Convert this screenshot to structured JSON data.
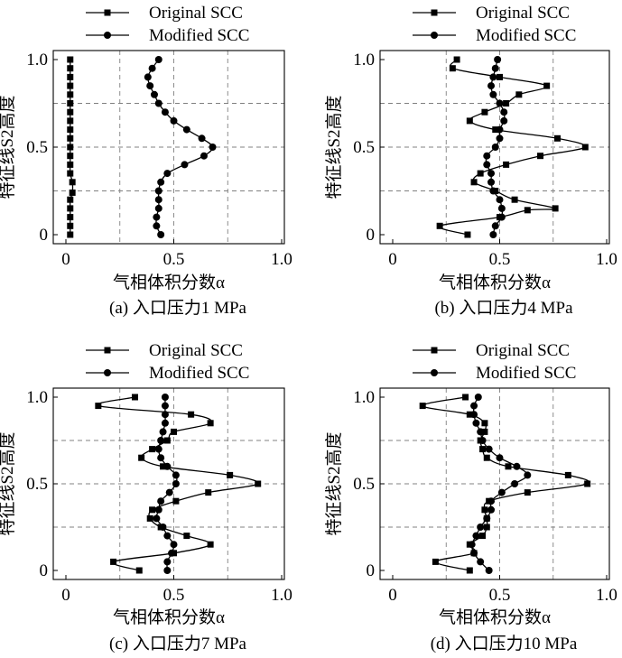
{
  "figure": {
    "subplot_captions": [
      "(a) 入口压力1 MPa",
      "(b) 入口压力4 MPa",
      "(c) 入口压力7 MPa",
      "(d) 入口压力10 MPa"
    ]
  },
  "colors": {
    "line": "#000000",
    "grid": "#808080",
    "background": "#ffffff"
  },
  "chart_data": [
    {
      "type": "line",
      "caption": "(a) 入口压力1 MPa",
      "xlabel": "气相体积分数α",
      "ylabel": "特征线S2高度",
      "xlim": [
        0,
        1.0
      ],
      "ylim": [
        0,
        1.0
      ],
      "xticks": [
        0,
        0.5,
        1.0
      ],
      "xtick_labels": [
        "0",
        "0.5",
        "1.0"
      ],
      "yticks": [
        0,
        0.5,
        1.0
      ],
      "ytick_labels": [
        "0",
        "0.5",
        "1.0"
      ],
      "grid": true,
      "legend": [
        "Original SCC",
        "Modified SCC"
      ],
      "series": [
        {
          "name": "Original SCC",
          "marker": "square",
          "points": [
            [
              0.02,
              0.0
            ],
            [
              0.02,
              0.05
            ],
            [
              0.02,
              0.1
            ],
            [
              0.02,
              0.15
            ],
            [
              0.02,
              0.2
            ],
            [
              0.03,
              0.24
            ],
            [
              0.03,
              0.3
            ],
            [
              0.02,
              0.35
            ],
            [
              0.02,
              0.4
            ],
            [
              0.02,
              0.45
            ],
            [
              0.02,
              0.5
            ],
            [
              0.02,
              0.55
            ],
            [
              0.02,
              0.6
            ],
            [
              0.02,
              0.65
            ],
            [
              0.02,
              0.7
            ],
            [
              0.02,
              0.75
            ],
            [
              0.02,
              0.8
            ],
            [
              0.02,
              0.85
            ],
            [
              0.02,
              0.9
            ],
            [
              0.02,
              0.95
            ],
            [
              0.02,
              1.0
            ]
          ]
        },
        {
          "name": "Modified SCC",
          "marker": "circle",
          "points": [
            [
              0.44,
              0.0
            ],
            [
              0.42,
              0.05
            ],
            [
              0.42,
              0.1
            ],
            [
              0.43,
              0.15
            ],
            [
              0.43,
              0.2
            ],
            [
              0.43,
              0.25
            ],
            [
              0.44,
              0.3
            ],
            [
              0.47,
              0.35
            ],
            [
              0.55,
              0.4
            ],
            [
              0.64,
              0.45
            ],
            [
              0.68,
              0.5
            ],
            [
              0.63,
              0.55
            ],
            [
              0.56,
              0.6
            ],
            [
              0.5,
              0.65
            ],
            [
              0.46,
              0.7
            ],
            [
              0.43,
              0.75
            ],
            [
              0.41,
              0.8
            ],
            [
              0.39,
              0.85
            ],
            [
              0.38,
              0.9
            ],
            [
              0.4,
              0.95
            ],
            [
              0.43,
              1.0
            ]
          ]
        }
      ]
    },
    {
      "type": "line",
      "caption": "(b) 入口压力4 MPa",
      "xlabel": "气相体积分数α",
      "ylabel": "特征线S2高度",
      "xlim": [
        0,
        1.0
      ],
      "ylim": [
        0,
        1.0
      ],
      "xticks": [
        0,
        0.5,
        1.0
      ],
      "xtick_labels": [
        "0",
        "0.5",
        "1.0"
      ],
      "yticks": [
        0,
        0.5,
        1.0
      ],
      "ytick_labels": [
        "0",
        "0.5",
        "1.0"
      ],
      "grid": true,
      "legend": [
        "Original SCC",
        "Modified SCC"
      ],
      "series": [
        {
          "name": "Original SCC",
          "marker": "square",
          "points": [
            [
              0.35,
              0.0
            ],
            [
              0.22,
              0.05
            ],
            [
              0.5,
              0.1
            ],
            [
              0.63,
              0.14
            ],
            [
              0.76,
              0.15
            ],
            [
              0.57,
              0.2
            ],
            [
              0.48,
              0.25
            ],
            [
              0.38,
              0.3
            ],
            [
              0.41,
              0.35
            ],
            [
              0.53,
              0.4
            ],
            [
              0.69,
              0.45
            ],
            [
              0.9,
              0.5
            ],
            [
              0.77,
              0.55
            ],
            [
              0.48,
              0.6
            ],
            [
              0.36,
              0.65
            ],
            [
              0.43,
              0.7
            ],
            [
              0.53,
              0.75
            ],
            [
              0.59,
              0.8
            ],
            [
              0.72,
              0.85
            ],
            [
              0.5,
              0.9
            ],
            [
              0.28,
              0.95
            ],
            [
              0.3,
              1.0
            ]
          ]
        },
        {
          "name": "Modified SCC",
          "marker": "circle",
          "points": [
            [
              0.47,
              0.0
            ],
            [
              0.48,
              0.05
            ],
            [
              0.51,
              0.1
            ],
            [
              0.51,
              0.15
            ],
            [
              0.5,
              0.2
            ],
            [
              0.47,
              0.25
            ],
            [
              0.46,
              0.3
            ],
            [
              0.46,
              0.35
            ],
            [
              0.44,
              0.4
            ],
            [
              0.44,
              0.45
            ],
            [
              0.48,
              0.5
            ],
            [
              0.5,
              0.55
            ],
            [
              0.5,
              0.6
            ],
            [
              0.52,
              0.65
            ],
            [
              0.52,
              0.7
            ],
            [
              0.5,
              0.75
            ],
            [
              0.47,
              0.8
            ],
            [
              0.46,
              0.85
            ],
            [
              0.47,
              0.9
            ],
            [
              0.48,
              0.95
            ],
            [
              0.49,
              1.0
            ]
          ]
        }
      ]
    },
    {
      "type": "line",
      "caption": "(c) 入口压力7 MPa",
      "xlabel": "气相体积分数α",
      "ylabel": "特征线S2高度",
      "xlim": [
        0,
        1.0
      ],
      "ylim": [
        0,
        1.0
      ],
      "xticks": [
        0,
        0.5,
        1.0
      ],
      "xtick_labels": [
        "0",
        "0.5",
        "1.0"
      ],
      "yticks": [
        0,
        0.5,
        1.0
      ],
      "ytick_labels": [
        "0",
        "0.5",
        "1.0"
      ],
      "grid": true,
      "legend": [
        "Original SCC",
        "Modified SCC"
      ],
      "series": [
        {
          "name": "Original SCC",
          "marker": "square",
          "points": [
            [
              0.34,
              0.0
            ],
            [
              0.22,
              0.05
            ],
            [
              0.5,
              0.1
            ],
            [
              0.67,
              0.15
            ],
            [
              0.56,
              0.2
            ],
            [
              0.44,
              0.25
            ],
            [
              0.39,
              0.3
            ],
            [
              0.4,
              0.35
            ],
            [
              0.51,
              0.4
            ],
            [
              0.66,
              0.45
            ],
            [
              0.89,
              0.5
            ],
            [
              0.76,
              0.55
            ],
            [
              0.45,
              0.6
            ],
            [
              0.35,
              0.65
            ],
            [
              0.4,
              0.7
            ],
            [
              0.47,
              0.75
            ],
            [
              0.5,
              0.8
            ],
            [
              0.67,
              0.85
            ],
            [
              0.58,
              0.9
            ],
            [
              0.15,
              0.95
            ],
            [
              0.32,
              1.0
            ]
          ]
        },
        {
          "name": "Modified SCC",
          "marker": "circle",
          "points": [
            [
              0.47,
              0.0
            ],
            [
              0.47,
              0.05
            ],
            [
              0.49,
              0.1
            ],
            [
              0.5,
              0.15
            ],
            [
              0.47,
              0.2
            ],
            [
              0.45,
              0.25
            ],
            [
              0.42,
              0.3
            ],
            [
              0.43,
              0.35
            ],
            [
              0.44,
              0.4
            ],
            [
              0.48,
              0.45
            ],
            [
              0.51,
              0.5
            ],
            [
              0.51,
              0.55
            ],
            [
              0.47,
              0.6
            ],
            [
              0.44,
              0.65
            ],
            [
              0.43,
              0.7
            ],
            [
              0.44,
              0.75
            ],
            [
              0.45,
              0.8
            ],
            [
              0.46,
              0.85
            ],
            [
              0.46,
              0.9
            ],
            [
              0.46,
              0.95
            ],
            [
              0.46,
              1.0
            ]
          ]
        }
      ]
    },
    {
      "type": "line",
      "caption": "(d) 入口压力10 MPa",
      "xlabel": "气相体积分数α",
      "ylabel": "特征线S2高度",
      "xlim": [
        0,
        1.0
      ],
      "ylim": [
        0,
        1.0
      ],
      "xticks": [
        0,
        0.5,
        1.0
      ],
      "xtick_labels": [
        "0",
        "0.5",
        "1.0"
      ],
      "yticks": [
        0,
        0.5,
        1.0
      ],
      "ytick_labels": [
        "0",
        "0.5",
        "1.0"
      ],
      "grid": true,
      "legend": [
        "Original SCC",
        "Modified SCC"
      ],
      "series": [
        {
          "name": "Original SCC",
          "marker": "square",
          "points": [
            [
              0.36,
              0.0
            ],
            [
              0.2,
              0.05
            ],
            [
              0.38,
              0.1
            ],
            [
              0.36,
              0.15
            ],
            [
              0.42,
              0.2
            ],
            [
              0.44,
              0.25
            ],
            [
              0.44,
              0.3
            ],
            [
              0.43,
              0.35
            ],
            [
              0.45,
              0.4
            ],
            [
              0.63,
              0.45
            ],
            [
              0.91,
              0.5
            ],
            [
              0.82,
              0.55
            ],
            [
              0.54,
              0.6
            ],
            [
              0.44,
              0.65
            ],
            [
              0.42,
              0.7
            ],
            [
              0.41,
              0.75
            ],
            [
              0.43,
              0.8
            ],
            [
              0.43,
              0.85
            ],
            [
              0.36,
              0.9
            ],
            [
              0.14,
              0.95
            ],
            [
              0.34,
              1.0
            ]
          ]
        },
        {
          "name": "Modified SCC",
          "marker": "circle",
          "points": [
            [
              0.45,
              0.0
            ],
            [
              0.41,
              0.05
            ],
            [
              0.38,
              0.1
            ],
            [
              0.37,
              0.15
            ],
            [
              0.39,
              0.2
            ],
            [
              0.41,
              0.25
            ],
            [
              0.44,
              0.3
            ],
            [
              0.46,
              0.35
            ],
            [
              0.46,
              0.4
            ],
            [
              0.51,
              0.45
            ],
            [
              0.57,
              0.5
            ],
            [
              0.63,
              0.55
            ],
            [
              0.58,
              0.6
            ],
            [
              0.5,
              0.65
            ],
            [
              0.45,
              0.7
            ],
            [
              0.42,
              0.75
            ],
            [
              0.41,
              0.8
            ],
            [
              0.39,
              0.85
            ],
            [
              0.38,
              0.9
            ],
            [
              0.38,
              0.95
            ],
            [
              0.4,
              1.0
            ]
          ]
        }
      ]
    }
  ]
}
